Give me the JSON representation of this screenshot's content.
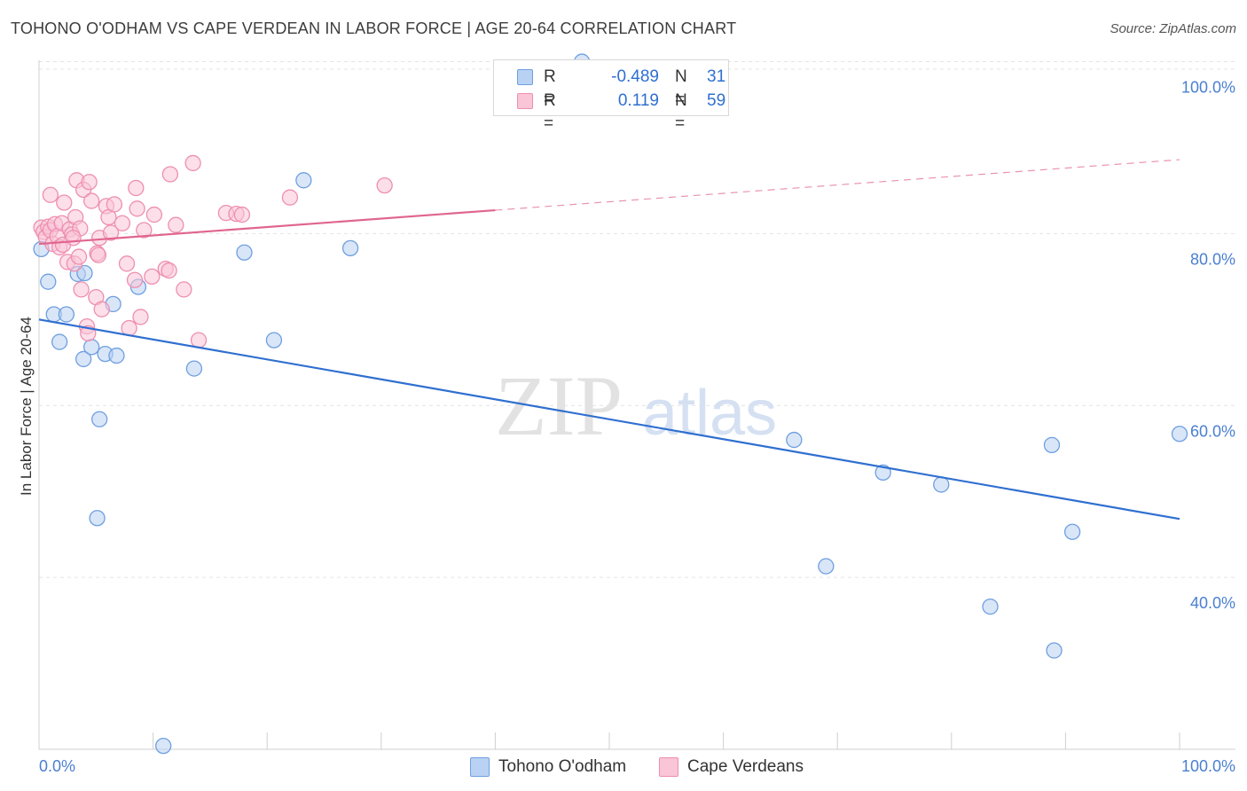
{
  "title": "TOHONO O'ODHAM VS CAPE VERDEAN IN LABOR FORCE | AGE 20-64 CORRELATION CHART",
  "source": "Source: ZipAtlas.com",
  "watermark": {
    "zip": "ZIP",
    "atlas": "atlas"
  },
  "chart_data": {
    "type": "scatter",
    "title": "TOHONO O'ODHAM VS CAPE VERDEAN IN LABOR FORCE | AGE 20-64 CORRELATION CHART",
    "xlabel": "",
    "ylabel": "In Labor Force | Age 20-64",
    "xlim": [
      0,
      100
    ],
    "ylim": [
      20,
      101.5
    ],
    "x_tick_labels": {
      "min": "0.0%",
      "max": "100.0%"
    },
    "y_ticks": [
      40,
      60,
      80,
      100
    ],
    "y_tick_labels": [
      "40.0%",
      "60.0%",
      "80.0%",
      "100.0%"
    ],
    "grid": true,
    "series": [
      {
        "name": "Tohono O'odham",
        "color": "#6f9fe0",
        "fill": "#b9d2f3",
        "line_color": "#2f6fd0",
        "r_label": "R =",
        "r_value": "-0.489",
        "n_label": "N =",
        "n_value": "31",
        "trend": {
          "x0": 0,
          "y0": 70.0,
          "x1": 100,
          "y1": 46.8,
          "dash_from": null
        },
        "points": [
          [
            0.2,
            78.2
          ],
          [
            0.8,
            74.4
          ],
          [
            1.3,
            70.6
          ],
          [
            1.8,
            67.4
          ],
          [
            2.4,
            70.6
          ],
          [
            3.4,
            75.3
          ],
          [
            4.0,
            75.4
          ],
          [
            3.9,
            65.4
          ],
          [
            4.6,
            66.8
          ],
          [
            5.3,
            58.4
          ],
          [
            5.8,
            66.0
          ],
          [
            6.5,
            71.8
          ],
          [
            6.8,
            65.8
          ],
          [
            5.1,
            46.9
          ],
          [
            8.7,
            73.8
          ],
          [
            10.9,
            20.4
          ],
          [
            13.6,
            64.3
          ],
          [
            18.0,
            77.8
          ],
          [
            20.6,
            67.6
          ],
          [
            23.2,
            86.2
          ],
          [
            27.3,
            78.3
          ],
          [
            47.6,
            100.0
          ],
          [
            66.2,
            56.0
          ],
          [
            69.0,
            41.3
          ],
          [
            74.0,
            52.2
          ],
          [
            79.1,
            50.8
          ],
          [
            83.4,
            36.6
          ],
          [
            88.8,
            55.4
          ],
          [
            89.0,
            31.5
          ],
          [
            90.6,
            45.3
          ],
          [
            100.0,
            56.7
          ]
        ]
      },
      {
        "name": "Cape Verdeans",
        "color": "#ee8fb0",
        "fill": "#f9c5d7",
        "line_color": "#e06590",
        "r_label": "R =",
        "r_value": "0.119",
        "n_label": "N =",
        "n_value": "59",
        "trend": {
          "x0": 0,
          "y0": 78.8,
          "x1": 100,
          "y1": 88.6,
          "dash_from": 40
        },
        "points": [
          [
            0.2,
            80.7
          ],
          [
            0.4,
            80.2
          ],
          [
            0.6,
            79.6
          ],
          [
            0.8,
            80.8
          ],
          [
            1.0,
            80.4
          ],
          [
            1.0,
            84.5
          ],
          [
            1.2,
            78.8
          ],
          [
            1.4,
            81.1
          ],
          [
            1.6,
            79.7
          ],
          [
            1.8,
            78.4
          ],
          [
            2.0,
            81.2
          ],
          [
            2.1,
            78.7
          ],
          [
            2.2,
            83.6
          ],
          [
            2.5,
            76.7
          ],
          [
            2.7,
            80.5
          ],
          [
            2.9,
            79.9
          ],
          [
            3.1,
            76.5
          ],
          [
            3.2,
            81.9
          ],
          [
            3.3,
            86.2
          ],
          [
            3.5,
            77.3
          ],
          [
            3.6,
            80.6
          ],
          [
            3.7,
            73.5
          ],
          [
            3.9,
            85.1
          ],
          [
            4.2,
            69.2
          ],
          [
            4.3,
            68.4
          ],
          [
            4.4,
            86.0
          ],
          [
            4.6,
            83.8
          ],
          [
            5.0,
            72.6
          ],
          [
            5.1,
            77.7
          ],
          [
            5.2,
            77.5
          ],
          [
            5.3,
            79.5
          ],
          [
            5.5,
            71.2
          ],
          [
            5.9,
            83.2
          ],
          [
            6.1,
            81.9
          ],
          [
            6.6,
            83.4
          ],
          [
            7.3,
            81.2
          ],
          [
            7.7,
            76.5
          ],
          [
            7.9,
            69.0
          ],
          [
            8.4,
            74.6
          ],
          [
            8.5,
            85.3
          ],
          [
            8.6,
            82.9
          ],
          [
            8.9,
            70.3
          ],
          [
            9.2,
            80.4
          ],
          [
            9.9,
            75.0
          ],
          [
            10.1,
            82.2
          ],
          [
            11.1,
            75.9
          ],
          [
            11.4,
            75.7
          ],
          [
            11.5,
            86.9
          ],
          [
            12.0,
            81.0
          ],
          [
            12.7,
            73.5
          ],
          [
            13.5,
            88.2
          ],
          [
            14.0,
            67.6
          ],
          [
            16.4,
            82.4
          ],
          [
            17.3,
            82.3
          ],
          [
            17.8,
            82.2
          ],
          [
            22.0,
            84.2
          ],
          [
            30.3,
            85.6
          ],
          [
            3.0,
            79.5
          ],
          [
            6.3,
            80.1
          ]
        ]
      }
    ]
  }
}
